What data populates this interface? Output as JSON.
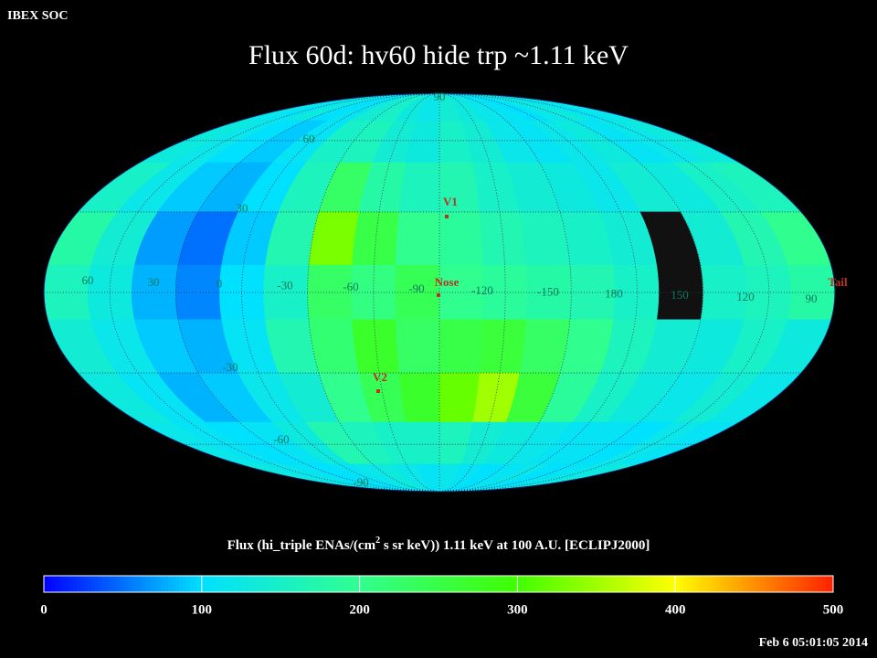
{
  "header": {
    "source": "IBEX SOC",
    "title": "Flux   60d: hv60 hide trp ~1.11 keV",
    "timestamp": "Feb  6 05:01:05 2014"
  },
  "map": {
    "projection": "mollweide",
    "longitude_labels": [
      60,
      30,
      0,
      -30,
      -60,
      -90,
      -120,
      -150,
      180,
      150,
      120,
      90
    ],
    "latitude_labels": [
      90,
      60,
      30,
      -30,
      -60,
      -90
    ],
    "markers": [
      {
        "label": "V1",
        "color": "#c03020"
      },
      {
        "label": "Nose",
        "color": "#c03020"
      },
      {
        "label": "V2",
        "color": "#c03020"
      },
      {
        "label": "Tail",
        "color": "#c03020"
      }
    ],
    "no_data_color": "#111111",
    "flux": [
      [
        120,
        110,
        130,
        100,
        110,
        140,
        150,
        130,
        120,
        140,
        130,
        120,
        110,
        100,
        120,
        130,
        110,
        120
      ],
      [
        130,
        120,
        100,
        90,
        110,
        150,
        160,
        140,
        130,
        150,
        140,
        120,
        110,
        120,
        130,
        110,
        120,
        130
      ],
      [
        150,
        120,
        90,
        80,
        100,
        160,
        230,
        180,
        160,
        170,
        150,
        140,
        130,
        120,
        140,
        130,
        150,
        160
      ],
      [
        180,
        140,
        70,
        50,
        90,
        170,
        330,
        250,
        200,
        190,
        170,
        160,
        150,
        140,
        null,
        140,
        170,
        200
      ],
      [
        160,
        130,
        80,
        60,
        100,
        150,
        230,
        210,
        240,
        200,
        190,
        180,
        170,
        150,
        null,
        150,
        160,
        180
      ],
      [
        140,
        120,
        90,
        80,
        110,
        170,
        220,
        270,
        230,
        250,
        260,
        230,
        200,
        160,
        140,
        130,
        150,
        130
      ],
      [
        130,
        110,
        80,
        90,
        120,
        140,
        200,
        240,
        270,
        320,
        350,
        260,
        190,
        150,
        130,
        120,
        140,
        120
      ],
      [
        120,
        110,
        100,
        110,
        130,
        170,
        160,
        150,
        150,
        160,
        140,
        130,
        120,
        110,
        110,
        100,
        120,
        110
      ],
      [
        130,
        120,
        110,
        100,
        110,
        120,
        130,
        120,
        110,
        120,
        110,
        100,
        110,
        120,
        100,
        110,
        120,
        130
      ]
    ]
  },
  "colorbar": {
    "label_parts": [
      "Flux (hi_triple ENAs/(cm",
      "2",
      " s sr keV))  1.11 keV at 100 A.U. [ECLIPJ2000]"
    ],
    "lim": [
      0,
      500
    ],
    "ticks": [
      0,
      100,
      200,
      300,
      400,
      500
    ],
    "colors": [
      "#0000ff",
      "#00e0ff",
      "#30ff90",
      "#40ff00",
      "#ffff00",
      "#ff2000"
    ]
  }
}
